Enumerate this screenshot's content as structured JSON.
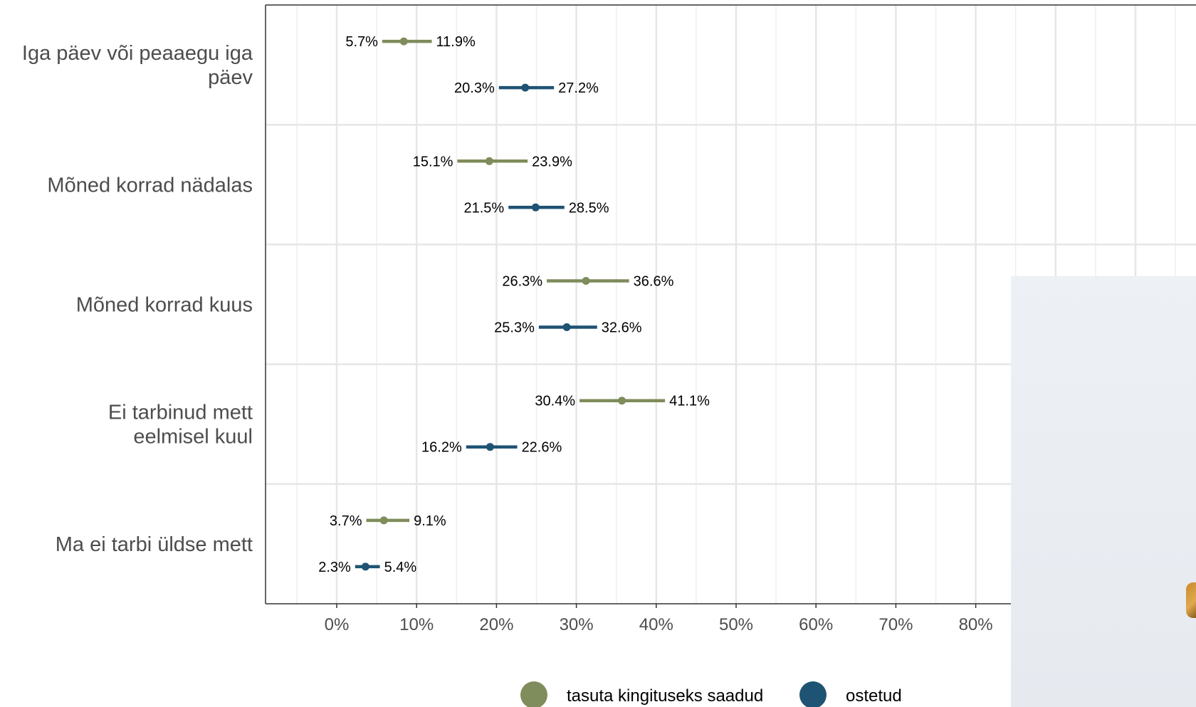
{
  "chart_data": {
    "type": "interval",
    "orientation": "horizontal",
    "categories": [
      "Iga päev või peaaegu iga päev",
      "Mõned korrad nädalas",
      "Mõned korrad kuus",
      "Ei tarbinud mett eelmisel kuul",
      "Ma ei tarbi üldse mett"
    ],
    "category_label_lines": [
      [
        "Iga päev või peaaegu iga",
        "päev"
      ],
      [
        "Mõned korrad nädalas"
      ],
      [
        "Mõned korrad kuus"
      ],
      [
        "Ei tarbinud mett",
        "eelmisel kuul"
      ],
      [
        "Ma ei tarbi üldse mett"
      ]
    ],
    "series": [
      {
        "name": "tasuta kingituseks saadud",
        "color": "#7f8c5b",
        "low": [
          5.7,
          15.1,
          26.3,
          30.4,
          3.7
        ],
        "high": [
          11.9,
          23.9,
          36.6,
          41.1,
          9.1
        ],
        "point": [
          8.4,
          19.1,
          31.2,
          35.7,
          5.9
        ],
        "low_labels": [
          "5.7%",
          "15.1%",
          "26.3%",
          "30.4%",
          "3.7%"
        ],
        "high_labels": [
          "11.9%",
          "23.9%",
          "36.6%",
          "41.1%",
          "9.1%"
        ]
      },
      {
        "name": "ostetud",
        "color": "#1f5373",
        "low": [
          20.3,
          21.5,
          25.3,
          16.2,
          2.3
        ],
        "high": [
          27.2,
          28.5,
          32.6,
          22.6,
          5.4
        ],
        "point": [
          23.6,
          24.9,
          28.8,
          19.2,
          3.6
        ],
        "low_labels": [
          "20.3%",
          "21.5%",
          "25.3%",
          "16.2%",
          "2.3%"
        ],
        "high_labels": [
          "27.2%",
          "28.5%",
          "32.6%",
          "22.6%",
          "5.4%"
        ]
      }
    ],
    "x_ticks": [
      0,
      10,
      20,
      30,
      40,
      50,
      60,
      70,
      80
    ],
    "x_tick_labels": [
      "0%",
      "10%",
      "20%",
      "30%",
      "40%",
      "50%",
      "60%",
      "70%",
      "80%"
    ],
    "xlim": [
      -9,
      110
    ],
    "grid": true,
    "legend_position": "bottom"
  }
}
